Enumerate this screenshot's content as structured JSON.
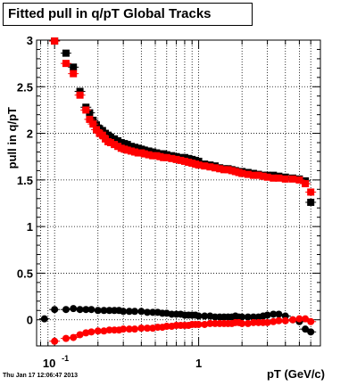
{
  "title": "Fitted pull in q/pT  Global Tracks",
  "timestamp": "Thu Jan 17 12:06:47 2013",
  "chart_data": {
    "type": "scatter",
    "xlabel": "pT (GeV/c)",
    "ylabel": "pull in q/pT",
    "xscale": "log",
    "xlim": [
      0.075,
      7.0
    ],
    "ylim": [
      -0.28,
      3.0
    ],
    "grid": true,
    "x_tick_labels": [
      {
        "x": 0.1,
        "base": "10",
        "exp": "-1"
      },
      {
        "x": 1,
        "base": "1",
        "exp": ""
      }
    ],
    "y_ticks": [
      0,
      0.5,
      1,
      1.5,
      2,
      2.5,
      3
    ],
    "y_tick_labels": [
      "0",
      "0.5",
      "1",
      "1.5",
      "2",
      "2.5",
      "3"
    ],
    "colors": {
      "black": "#000000",
      "red": "#ff0000"
    },
    "series": [
      {
        "color": "black",
        "marker": "square",
        "x": [
          0.1,
          0.12,
          0.135,
          0.15,
          0.165,
          0.175,
          0.185,
          0.195,
          0.205,
          0.215,
          0.225,
          0.235,
          0.245,
          0.26,
          0.275,
          0.29,
          0.305,
          0.32,
          0.34,
          0.36,
          0.38,
          0.4,
          0.42,
          0.45,
          0.48,
          0.51,
          0.54,
          0.57,
          0.6,
          0.65,
          0.7,
          0.75,
          0.8,
          0.85,
          0.9,
          0.95,
          1.0,
          1.1,
          1.2,
          1.3,
          1.4,
          1.5,
          1.6,
          1.7,
          1.8,
          1.9,
          2.0,
          2.2,
          2.4,
          2.6,
          2.8,
          3.0,
          3.3,
          3.6,
          4.0,
          4.5,
          5.0,
          5.5,
          6.0
        ],
        "y": [
          2.99,
          2.86,
          2.71,
          2.45,
          2.28,
          2.22,
          2.14,
          2.09,
          2.05,
          2.03,
          2.0,
          1.98,
          1.96,
          1.94,
          1.92,
          1.9,
          1.89,
          1.88,
          1.86,
          1.85,
          1.84,
          1.83,
          1.82,
          1.81,
          1.8,
          1.79,
          1.78,
          1.78,
          1.77,
          1.76,
          1.75,
          1.74,
          1.74,
          1.73,
          1.72,
          1.71,
          1.7,
          1.67,
          1.66,
          1.65,
          1.63,
          1.62,
          1.62,
          1.61,
          1.6,
          1.59,
          1.59,
          1.58,
          1.57,
          1.56,
          1.55,
          1.55,
          1.55,
          1.54,
          1.53,
          1.52,
          1.51,
          1.49,
          1.26
        ]
      },
      {
        "color": "red",
        "marker": "square",
        "x": [
          0.1,
          0.12,
          0.135,
          0.15,
          0.165,
          0.175,
          0.185,
          0.195,
          0.205,
          0.215,
          0.225,
          0.235,
          0.245,
          0.26,
          0.275,
          0.29,
          0.305,
          0.32,
          0.34,
          0.36,
          0.38,
          0.4,
          0.42,
          0.45,
          0.48,
          0.51,
          0.54,
          0.57,
          0.6,
          0.65,
          0.7,
          0.75,
          0.8,
          0.85,
          0.9,
          0.95,
          1.0,
          1.1,
          1.2,
          1.3,
          1.4,
          1.5,
          1.6,
          1.7,
          1.8,
          1.9,
          2.0,
          2.2,
          2.4,
          2.6,
          2.8,
          3.0,
          3.3,
          3.6,
          4.0,
          4.5,
          5.0,
          5.5,
          6.0
        ],
        "y": [
          2.99,
          2.75,
          2.64,
          2.41,
          2.25,
          2.15,
          2.1,
          2.04,
          2.0,
          1.98,
          1.94,
          1.91,
          1.9,
          1.88,
          1.86,
          1.84,
          1.83,
          1.82,
          1.81,
          1.8,
          1.79,
          1.79,
          1.78,
          1.77,
          1.76,
          1.76,
          1.75,
          1.74,
          1.74,
          1.73,
          1.72,
          1.71,
          1.7,
          1.69,
          1.68,
          1.67,
          1.66,
          1.65,
          1.64,
          1.63,
          1.62,
          1.61,
          1.61,
          1.6,
          1.59,
          1.58,
          1.57,
          1.56,
          1.55,
          1.55,
          1.54,
          1.53,
          1.52,
          1.52,
          1.51,
          1.51,
          1.5,
          1.46,
          1.37
        ]
      },
      {
        "color": "black",
        "marker": "circle",
        "x": [
          0.085,
          0.1,
          0.12,
          0.135,
          0.15,
          0.165,
          0.18,
          0.2,
          0.22,
          0.24,
          0.26,
          0.28,
          0.3,
          0.33,
          0.36,
          0.4,
          0.44,
          0.48,
          0.52,
          0.56,
          0.6,
          0.65,
          0.7,
          0.75,
          0.8,
          0.85,
          0.9,
          0.95,
          1.0,
          1.1,
          1.2,
          1.3,
          1.4,
          1.5,
          1.6,
          1.7,
          1.8,
          1.9,
          2.0,
          2.2,
          2.4,
          2.6,
          2.8,
          3.0,
          3.3,
          3.6,
          4.0,
          4.5,
          5.0,
          5.5,
          6.0
        ],
        "y": [
          0.01,
          0.11,
          0.11,
          0.12,
          0.11,
          0.11,
          0.11,
          0.1,
          0.1,
          0.1,
          0.1,
          0.1,
          0.09,
          0.09,
          0.09,
          0.09,
          0.08,
          0.08,
          0.08,
          0.07,
          0.07,
          0.06,
          0.06,
          0.06,
          0.05,
          0.05,
          0.05,
          0.05,
          0.04,
          0.04,
          0.04,
          0.03,
          0.03,
          0.03,
          0.03,
          0.03,
          0.04,
          0.03,
          0.03,
          0.03,
          0.03,
          0.03,
          0.04,
          0.05,
          0.06,
          0.06,
          0.04,
          0.0,
          -0.02,
          -0.1,
          -0.13
        ]
      },
      {
        "color": "red",
        "marker": "circle",
        "x": [
          0.1,
          0.12,
          0.135,
          0.15,
          0.165,
          0.18,
          0.2,
          0.22,
          0.24,
          0.26,
          0.28,
          0.3,
          0.33,
          0.36,
          0.4,
          0.44,
          0.48,
          0.52,
          0.56,
          0.6,
          0.65,
          0.7,
          0.75,
          0.8,
          0.85,
          0.9,
          0.95,
          1.0,
          1.1,
          1.2,
          1.3,
          1.4,
          1.5,
          1.6,
          1.7,
          1.8,
          1.9,
          2.0,
          2.2,
          2.4,
          2.6,
          2.8,
          3.0,
          3.3,
          3.6,
          4.0,
          4.5,
          5.0,
          5.5,
          6.0
        ],
        "y": [
          -0.23,
          -0.2,
          -0.19,
          -0.16,
          -0.14,
          -0.13,
          -0.12,
          -0.12,
          -0.11,
          -0.11,
          -0.11,
          -0.1,
          -0.1,
          -0.1,
          -0.09,
          -0.09,
          -0.09,
          -0.08,
          -0.08,
          -0.07,
          -0.07,
          -0.06,
          -0.06,
          -0.06,
          -0.06,
          -0.05,
          -0.05,
          -0.05,
          -0.05,
          -0.04,
          -0.04,
          -0.04,
          -0.04,
          -0.04,
          -0.04,
          -0.03,
          -0.03,
          -0.04,
          -0.04,
          -0.03,
          -0.03,
          -0.03,
          -0.03,
          -0.02,
          -0.01,
          -0.01,
          0.0,
          0.01,
          0.01,
          -0.02
        ]
      }
    ]
  }
}
